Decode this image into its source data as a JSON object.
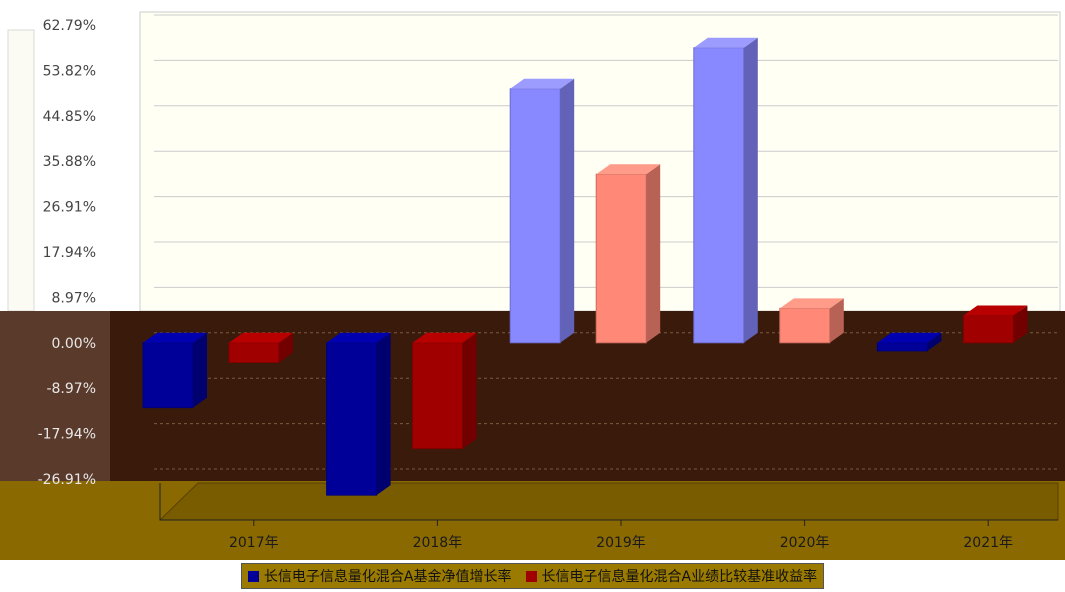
{
  "chart_data": {
    "type": "bar",
    "categories": [
      "2017年",
      "2018年",
      "2019年",
      "2020年",
      "2021年"
    ],
    "series": [
      {
        "name": "长信电子信息量化混合A基金净值增长率",
        "values": [
          -12.8,
          -30.1,
          50.2,
          58.3,
          -1.6
        ],
        "color": "#000099"
      },
      {
        "name": "长信电子信息量化混合A业绩比较基准收益率",
        "values": [
          -3.9,
          -20.9,
          33.3,
          6.8,
          5.4
        ],
        "color": "#a00000"
      }
    ],
    "y_ticks": [
      "62.79%",
      "53.82%",
      "44.85%",
      "35.88%",
      "26.91%",
      "17.94%",
      "8.97%",
      "0.00%",
      "-8.97%",
      "-17.94%",
      "-26.91%"
    ],
    "y_tick_values": [
      62.79,
      53.82,
      44.85,
      35.88,
      26.91,
      17.94,
      8.97,
      0,
      -8.97,
      -17.94,
      -26.91
    ],
    "ylim": [
      -26.91,
      62.79
    ],
    "grid": true,
    "legend_position": "bottom-center",
    "colors": {
      "upper_background": "#fffff4",
      "lower_background": "#3a1a0a",
      "floor": "#8a6a00",
      "gridline": "#cccccc",
      "series1_light": "#8888ff",
      "series2_light": "#ff8877"
    }
  }
}
